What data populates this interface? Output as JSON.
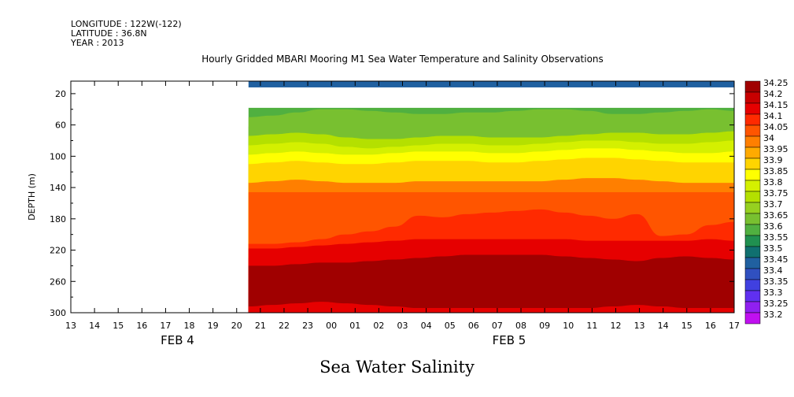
{
  "header": {
    "longitude": "LONGITUDE : 122W(-122)",
    "latitude": "LATITUDE : 36.8N",
    "year": "YEAR : 2013"
  },
  "chart_data": {
    "type": "heatmap",
    "title": "Hourly Gridded MBARI Mooring M1 Sea Water Temperature and Salinity Observations",
    "bottom_label": "Sea Water Salinity",
    "ylabel": "DEPTH (m)",
    "y_range": [
      300,
      4
    ],
    "y_ticks": [
      20,
      60,
      100,
      140,
      180,
      220,
      260,
      300
    ],
    "x_range_hours": [
      0,
      28
    ],
    "x_tick_labels": [
      "13",
      "14",
      "15",
      "16",
      "17",
      "18",
      "19",
      "20",
      "21",
      "22",
      "23",
      "00",
      "01",
      "02",
      "03",
      "04",
      "05",
      "06",
      "07",
      "08",
      "09",
      "10",
      "11",
      "12",
      "13",
      "14",
      "15",
      "16",
      "17"
    ],
    "date_labels": [
      {
        "label": "FEB  4",
        "center_hour": 4.5
      },
      {
        "label": "FEB  5",
        "center_hour": 18.5
      }
    ],
    "data_start_hour": 7.5,
    "data_end_hour": 28,
    "surface_band": {
      "depth_top": 4,
      "depth_bottom": 12,
      "value": 33.43
    },
    "gap_depth": [
      12,
      38
    ],
    "contour_lines_depth": [
      {
        "value": 33.625,
        "depth": [
          50,
          48,
          44,
          40,
          40,
          42,
          44,
          46,
          46,
          44,
          44,
          42,
          40,
          40,
          42,
          46,
          46,
          44,
          42,
          40,
          42
        ]
      },
      {
        "value": 33.675,
        "depth": [
          62,
          60,
          58,
          58,
          60,
          64,
          66,
          64,
          62,
          62,
          64,
          64,
          64,
          62,
          60,
          58,
          56,
          56,
          58,
          60,
          58
        ]
      },
      {
        "value": 33.725,
        "depth": [
          74,
          72,
          70,
          72,
          76,
          78,
          78,
          76,
          74,
          74,
          76,
          76,
          76,
          74,
          72,
          70,
          70,
          72,
          72,
          70,
          68
        ]
      },
      {
        "value": 33.775,
        "depth": [
          86,
          84,
          82,
          84,
          88,
          90,
          88,
          86,
          84,
          84,
          86,
          86,
          84,
          82,
          80,
          80,
          82,
          84,
          84,
          82,
          80
        ]
      },
      {
        "value": 33.825,
        "depth": [
          98,
          96,
          94,
          96,
          98,
          98,
          96,
          94,
          94,
          94,
          96,
          96,
          94,
          92,
          90,
          90,
          92,
          94,
          96,
          96,
          94
        ]
      },
      {
        "value": 33.875,
        "depth": [
          110,
          108,
          106,
          108,
          110,
          110,
          108,
          106,
          106,
          106,
          108,
          108,
          106,
          104,
          102,
          102,
          104,
          106,
          108,
          108,
          108
        ]
      },
      {
        "value": 33.925,
        "depth": [
          122,
          120,
          118,
          120,
          122,
          122,
          120,
          118,
          118,
          118,
          120,
          120,
          118,
          116,
          114,
          114,
          116,
          118,
          120,
          120,
          120
        ]
      },
      {
        "value": 33.975,
        "depth": [
          134,
          132,
          130,
          132,
          134,
          134,
          134,
          132,
          132,
          132,
          132,
          132,
          132,
          130,
          128,
          128,
          130,
          132,
          134,
          134,
          134
        ]
      },
      {
        "value": 34.025,
        "depth": [
          146,
          146,
          146,
          146,
          146,
          146,
          146,
          146,
          146,
          146,
          146,
          146,
          146,
          146,
          146,
          146,
          146,
          146,
          146,
          146,
          146
        ]
      },
      {
        "value": 34.075,
        "depth": [
          212,
          212,
          210,
          206,
          200,
          196,
          190,
          176,
          178,
          174,
          172,
          170,
          168,
          172,
          176,
          180,
          174,
          202,
          200,
          188,
          184
        ]
      },
      {
        "value": 34.125,
        "depth": [
          218,
          218,
          216,
          214,
          212,
          210,
          208,
          206,
          206,
          206,
          206,
          206,
          206,
          206,
          208,
          208,
          208,
          208,
          208,
          206,
          208
        ]
      },
      {
        "value": 34.175,
        "depth": [
          230,
          230,
          228,
          226,
          226,
          224,
          222,
          220,
          218,
          216,
          216,
          216,
          216,
          218,
          220,
          220,
          222,
          220,
          218,
          218,
          220
        ]
      },
      {
        "value": 34.225,
        "depth": [
          240,
          240,
          238,
          236,
          236,
          234,
          232,
          230,
          228,
          226,
          226,
          226,
          226,
          228,
          230,
          232,
          234,
          230,
          228,
          230,
          232
        ]
      },
      {
        "value": 34.275,
        "depth": [
          258,
          258,
          258,
          258,
          258,
          258,
          258,
          258,
          258,
          258,
          258,
          258,
          258,
          258,
          258,
          258,
          258,
          258,
          258,
          258,
          258
        ]
      },
      {
        "value": 34.225,
        "depth": [
          274,
          272,
          270,
          268,
          268,
          270,
          272,
          274,
          276,
          276,
          276,
          276,
          276,
          276,
          276,
          276,
          276,
          274,
          272,
          272,
          274
        ]
      },
      {
        "value": 34.175,
        "depth": [
          292,
          290,
          288,
          286,
          288,
          290,
          292,
          294,
          294,
          294,
          294,
          294,
          294,
          294,
          294,
          292,
          290,
          292,
          294,
          294,
          294
        ]
      }
    ],
    "patches": [
      {
        "value": 34.275,
        "hour_start": 15.2,
        "hour_end": 21.8,
        "depth_center": 251,
        "depth_half": 6
      },
      {
        "value": 34.275,
        "hour_start": 23.8,
        "hour_end": 26.6,
        "depth_center": 251,
        "depth_half": 5
      },
      {
        "value": 34.275,
        "hour_start": 7.5,
        "hour_end": 8.7,
        "depth_center": 251,
        "depth_half": 3
      }
    ],
    "colorbar": {
      "levels": [
        "34.25",
        "34.2",
        "34.15",
        "34.1",
        "34.05",
        "34",
        "33.95",
        "33.9",
        "33.85",
        "33.8",
        "33.75",
        "33.7",
        "33.65",
        "33.6",
        "33.55",
        "33.5",
        "33.45",
        "33.4",
        "33.35",
        "33.3",
        "33.25",
        "33.2"
      ],
      "colors": [
        "#a00000",
        "#c80000",
        "#e60000",
        "#ff2a00",
        "#ff5500",
        "#ff7f00",
        "#ffaa00",
        "#ffd400",
        "#ffff00",
        "#d4f000",
        "#b4e000",
        "#96d020",
        "#78c030",
        "#50b040",
        "#209050",
        "#107070",
        "#2060a0",
        "#3050c0",
        "#4040e0",
        "#6030f0",
        "#9020f0",
        "#c010f0"
      ]
    }
  }
}
